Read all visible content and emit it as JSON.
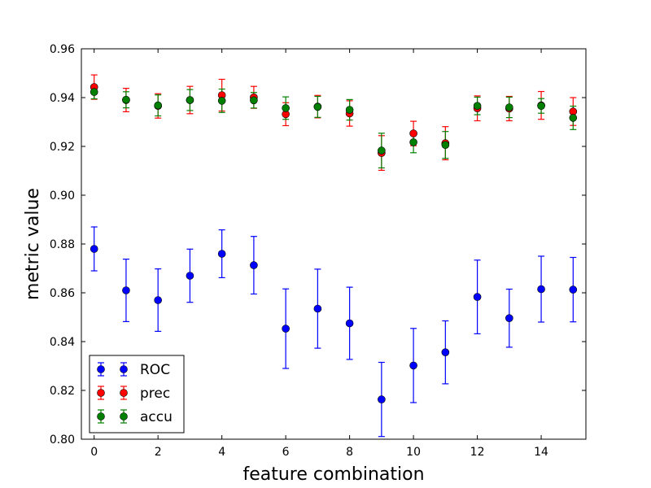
{
  "chart_data": {
    "type": "scatter",
    "title": "",
    "xlabel": "feature combination",
    "ylabel": "metric value",
    "xlim": [
      -0.4,
      15.4
    ],
    "ylim": [
      0.8,
      0.96
    ],
    "xticks": [
      "0",
      "2",
      "4",
      "6",
      "8",
      "10",
      "12",
      "14"
    ],
    "yticks": [
      "0.80",
      "0.82",
      "0.84",
      "0.86",
      "0.88",
      "0.90",
      "0.92",
      "0.94",
      "0.96"
    ],
    "grid": false,
    "legend": "lower-left",
    "x": [
      0,
      1,
      2,
      3,
      4,
      5,
      6,
      7,
      8,
      9,
      10,
      11,
      12,
      13,
      14,
      15
    ],
    "series": [
      {
        "name": "ROC",
        "color": "#0000ff",
        "values": [
          0.878,
          0.861,
          0.857,
          0.867,
          0.876,
          0.8713,
          0.8453,
          0.8535,
          0.8475,
          0.8163,
          0.8302,
          0.8356,
          0.8583,
          0.8496,
          0.8615,
          0.8613
        ],
        "errors": [
          0.009,
          0.0128,
          0.0128,
          0.0109,
          0.0098,
          0.0118,
          0.0163,
          0.0162,
          0.0148,
          0.0152,
          0.0152,
          0.0129,
          0.0151,
          0.0119,
          0.0135,
          0.0132
        ]
      },
      {
        "name": "prec",
        "color": "#ff0000",
        "values": [
          0.9443,
          0.939,
          0.9366,
          0.939,
          0.941,
          0.9401,
          0.9332,
          0.9363,
          0.9335,
          0.9173,
          0.9253,
          0.9213,
          0.9356,
          0.9355,
          0.9368,
          0.9343
        ],
        "errors": [
          0.005,
          0.0048,
          0.005,
          0.0056,
          0.0065,
          0.0045,
          0.0047,
          0.0046,
          0.0052,
          0.0071,
          0.005,
          0.0068,
          0.0051,
          0.005,
          0.0057,
          0.0057
        ]
      },
      {
        "name": "accu",
        "color": "#008000",
        "values": [
          0.9423,
          0.9391,
          0.9368,
          0.939,
          0.9387,
          0.9389,
          0.9357,
          0.9362,
          0.935,
          0.9183,
          0.9217,
          0.9206,
          0.9366,
          0.936,
          0.9366,
          0.9317
        ],
        "errors": [
          0.0028,
          0.0033,
          0.0043,
          0.0043,
          0.0048,
          0.0032,
          0.0046,
          0.0043,
          0.0042,
          0.0071,
          0.0043,
          0.0055,
          0.0036,
          0.0042,
          0.003,
          0.0048
        ]
      }
    ]
  }
}
